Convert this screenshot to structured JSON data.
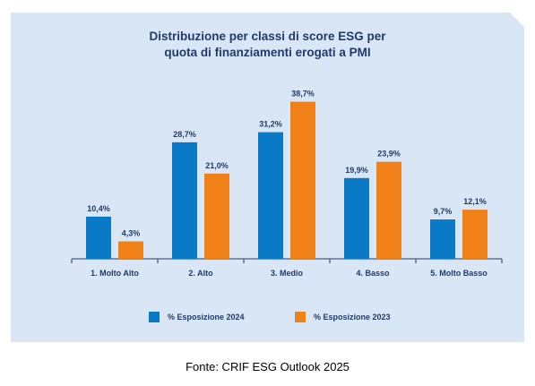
{
  "caption": "Fonte: CRIF ESG Outlook 2025",
  "colors": {
    "background": "#d9e6f5",
    "series_2024": "#0a7ac6",
    "series_2023": "#f08119",
    "text": "#1f3a6b"
  },
  "chart_data": {
    "type": "bar",
    "title_lines": [
      "Distribuzione per classi di score ESG per",
      "quota di finanziamenti erogati a PMI"
    ],
    "categories": [
      "1. Molto Alto",
      "2. Alto",
      "3. Medio",
      "4. Basso",
      "5. Molto Basso"
    ],
    "series": [
      {
        "name": "% Esposizione 2024",
        "values": [
          10.4,
          28.7,
          31.2,
          19.9,
          9.7
        ],
        "labels": [
          "10,4%",
          "28,7%",
          "31,2%",
          "19,9%",
          "9,7%"
        ]
      },
      {
        "name": "% Esposizione 2023",
        "values": [
          4.3,
          21.0,
          38.7,
          23.9,
          12.1
        ],
        "labels": [
          "4,3%",
          "21,0%",
          "38,7%",
          "23,9%",
          "12,1%"
        ]
      }
    ],
    "ylim": [
      0,
      40
    ],
    "grid": false,
    "legend_position": "bottom"
  }
}
